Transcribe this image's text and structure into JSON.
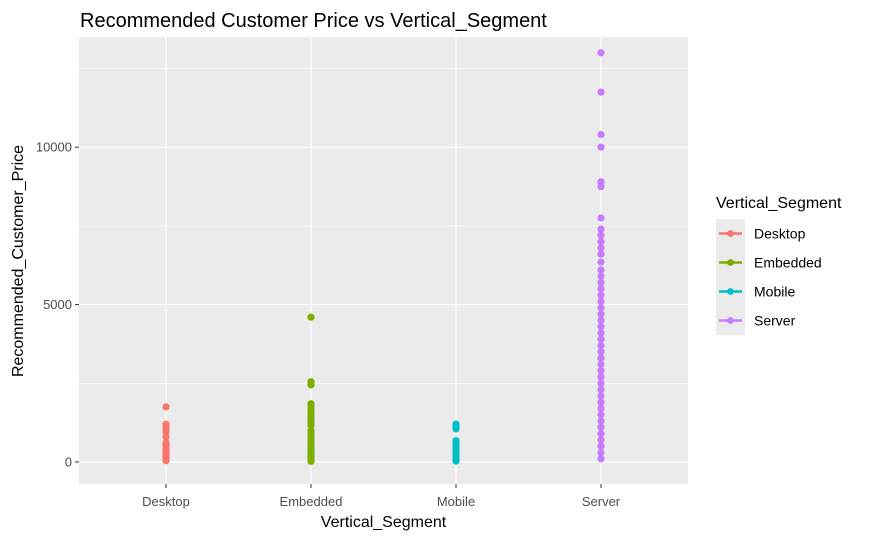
{
  "chart_data": {
    "type": "scatter",
    "title": "Recommended Customer Price vs Vertical_Segment",
    "xlabel": "Vertical_Segment",
    "ylabel": "Recommended_Customer_Price",
    "categories": [
      "Desktop",
      "Embedded",
      "Mobile",
      "Server"
    ],
    "ylim": [
      -700,
      13500
    ],
    "yticks": [
      0,
      5000,
      10000
    ],
    "ytick_labels": [
      "0",
      "5000",
      "10000"
    ],
    "grid": true,
    "panel_background": "#ebebeb",
    "legend": {
      "title": "Vertical_Segment",
      "position": "right",
      "entries": [
        "Desktop",
        "Embedded",
        "Mobile",
        "Server"
      ]
    },
    "series": [
      {
        "name": "Desktop",
        "color": "#F8766D",
        "values": [
          1750,
          1200,
          1100,
          1050,
          950,
          800,
          620,
          550,
          480,
          400,
          330,
          280,
          230,
          180,
          120,
          70,
          40
        ]
      },
      {
        "name": "Embedded",
        "color": "#7CAE00",
        "values": [
          4600,
          2550,
          2450,
          1850,
          1750,
          1650,
          1550,
          1450,
          1350,
          1250,
          1150,
          1000,
          900,
          800,
          700,
          600,
          500,
          420,
          350,
          280,
          220,
          160,
          110,
          60,
          20
        ]
      },
      {
        "name": "Mobile",
        "color": "#00BFC4",
        "values": [
          1200,
          1150,
          1100,
          1050,
          680,
          620,
          560,
          500,
          440,
          390,
          340,
          290,
          240,
          190,
          140,
          100,
          60,
          30
        ]
      },
      {
        "name": "Server",
        "color": "#C77CFF",
        "values": [
          13000,
          11750,
          10400,
          10000,
          8900,
          8750,
          7750,
          7400,
          7200,
          7000,
          6800,
          6600,
          6350,
          6100,
          5900,
          5700,
          5500,
          5300,
          5100,
          4900,
          4700,
          4500,
          4300,
          4100,
          3900,
          3700,
          3500,
          3300,
          3100,
          2900,
          2700,
          2500,
          2300,
          2100,
          1900,
          1700,
          1500,
          1300,
          1100,
          900,
          700,
          500,
          300,
          100
        ]
      }
    ]
  }
}
